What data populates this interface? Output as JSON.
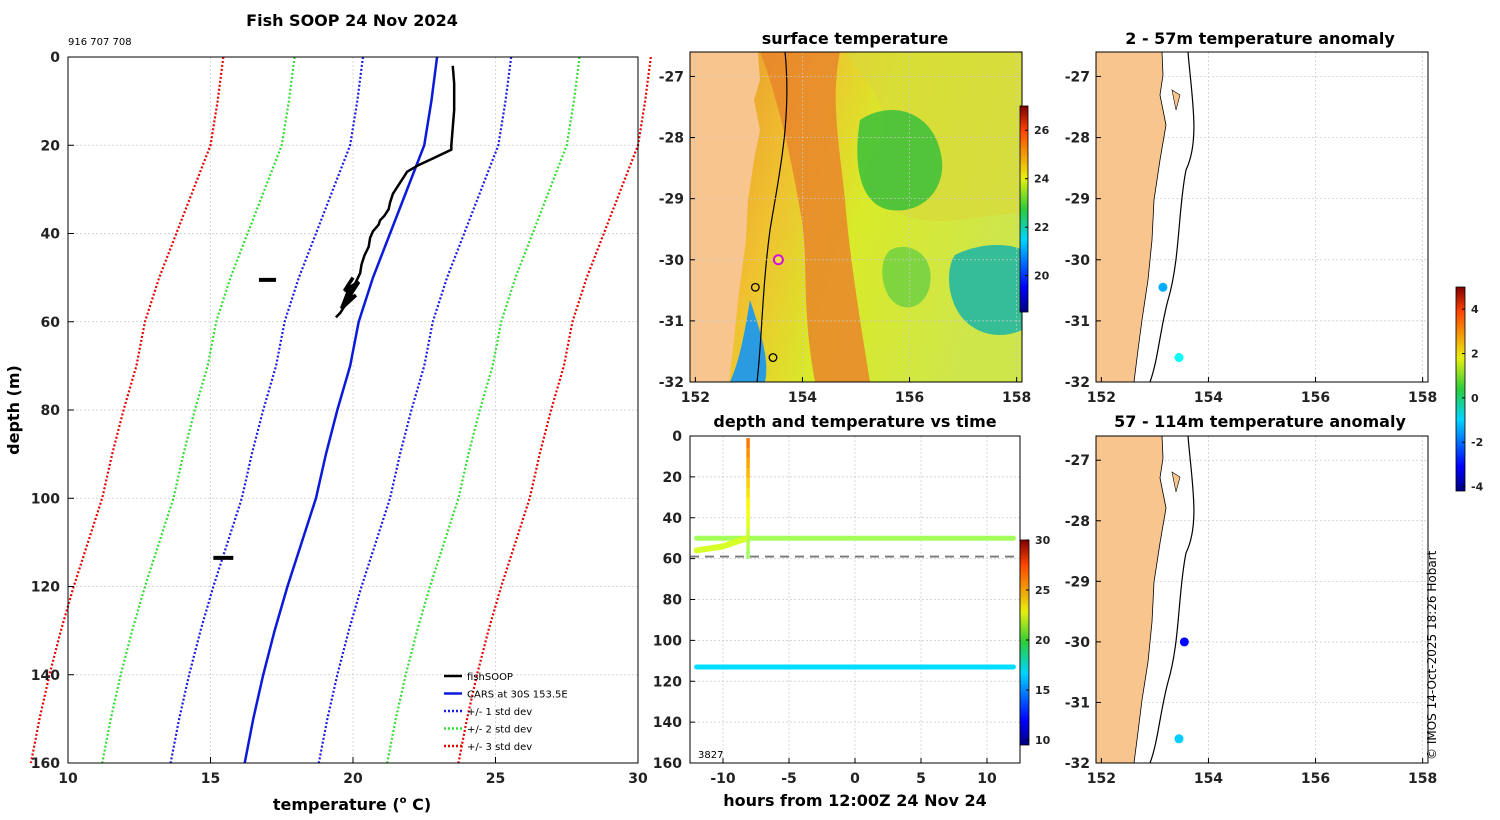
{
  "chart_data": [
    {
      "type": "line",
      "title": "Fish SOOP 24 Nov 2024",
      "id_label": "916 707 708",
      "xlabel": "temperature (",
      "xlabel_sup": "o",
      "xlabel_unit": " C)",
      "ylabel": "depth (m)",
      "xlim": [
        10,
        30
      ],
      "ylim": [
        160,
        0
      ],
      "xticks": [
        10,
        15,
        20,
        25,
        30
      ],
      "yticks": [
        0,
        20,
        40,
        60,
        80,
        100,
        120,
        140,
        160
      ],
      "legend_position": "bottom-right",
      "legend": [
        "fishSOOP",
        "CARS at 30S 153.5E",
        "+/- 1 std dev",
        "+/- 2 std dev",
        "+/- 3 std dev"
      ],
      "cars_profile": {
        "depth": [
          0,
          10,
          20,
          30,
          40,
          50,
          60,
          70,
          80,
          90,
          100,
          110,
          120,
          130,
          140,
          150,
          160
        ],
        "temp": [
          22.95,
          22.75,
          22.5,
          21.9,
          21.3,
          20.7,
          20.2,
          19.9,
          19.45,
          19.05,
          18.7,
          18.2,
          17.7,
          17.25,
          16.85,
          16.5,
          16.2
        ]
      },
      "std_offsets": [
        2.6,
        5.0,
        7.5
      ],
      "fishsoop_profile": {
        "temp": [
          23.5,
          23.55,
          23.55,
          23.5,
          23.45,
          23.45,
          22.8,
          22.3,
          21.9,
          21.8,
          21.6,
          21.4,
          21.3,
          21.25,
          21.1,
          20.95,
          20.9,
          20.7,
          20.6,
          20.55,
          20.4,
          20.3,
          20.25,
          20.1,
          19.95,
          19.85,
          19.75,
          19.65,
          19.55,
          19.4
        ],
        "depth": [
          2,
          6,
          12,
          16,
          20,
          21,
          23,
          24.5,
          26,
          27,
          29,
          31,
          33,
          34.5,
          36,
          37,
          38,
          39.5,
          41,
          43,
          45,
          47,
          49,
          51,
          53,
          54.5,
          56,
          57,
          58,
          59
        ]
      },
      "fishsoop_clusters": [
        {
          "temp": [
            16.7,
            17.3
          ],
          "depth": 50.5
        },
        {
          "temp": [
            15.1,
            15.8
          ],
          "depth": 113.5
        }
      ]
    },
    {
      "type": "heatmap",
      "title": "surface temperature",
      "xlim": [
        151.9,
        158.1
      ],
      "ylim": [
        -32,
        -26.6
      ],
      "xticks": [
        152,
        154,
        156,
        158
      ],
      "yticks": [
        -27,
        -28,
        -29,
        -30,
        -31,
        -32
      ],
      "colorbar_range": [
        18.5,
        27
      ],
      "colorbar_ticks": [
        20,
        22,
        24,
        26
      ],
      "markers": [
        {
          "lon": 153.55,
          "lat": -30.0,
          "style": "magenta"
        },
        {
          "lon": 153.12,
          "lat": -30.45,
          "style": "ring"
        },
        {
          "lon": 153.45,
          "lat": -31.6,
          "style": "ring"
        }
      ]
    },
    {
      "type": "scatter",
      "title": "depth and temperature vs time",
      "xlabel": "hours from 12:00Z 24 Nov 24",
      "xlim": [
        -12.5,
        12.5
      ],
      "ylim": [
        160,
        0
      ],
      "xticks": [
        -10,
        -5,
        0,
        5,
        10
      ],
      "yticks": [
        0,
        20,
        40,
        60,
        80,
        100,
        120,
        140,
        160
      ],
      "colorbar_range": [
        9.5,
        30
      ],
      "colorbar_ticks": [
        10,
        15,
        20,
        25,
        30
      ],
      "dashed_line_depth": 59,
      "corner_label": "3827",
      "series": [
        {
          "name": "upper track",
          "hours": [
            -12,
            -8,
            -4,
            0,
            4,
            8,
            12
          ],
          "depth": 50,
          "temp": 20.5
        },
        {
          "name": "lower track",
          "hours": [
            -12,
            -8,
            -4,
            0,
            4,
            8,
            12
          ],
          "depth": 113,
          "temp": 16.5
        },
        {
          "name": "descent",
          "hours": [
            -12,
            -10,
            -8.2
          ],
          "depth": [
            56,
            54,
            50
          ],
          "temp": 21.5
        },
        {
          "name": "cast",
          "hours": [
            -8.1,
            -8.1
          ],
          "depth": [
            1,
            60
          ],
          "temp_top": 25,
          "temp_bottom": 20
        }
      ]
    },
    {
      "type": "scatter",
      "title": "2 - 57m temperature anomaly",
      "xlim": [
        151.9,
        158.1
      ],
      "ylim": [
        -32,
        -26.6
      ],
      "xticks": [
        152,
        154,
        156,
        158
      ],
      "yticks": [
        -27,
        -28,
        -29,
        -30,
        -31,
        -32
      ],
      "points": [
        {
          "lon": 153.15,
          "lat": -30.45,
          "anomaly": -1.5
        },
        {
          "lon": 153.45,
          "lat": -31.6,
          "anomaly": -0.7
        }
      ]
    },
    {
      "type": "scatter",
      "title": "57 - 114m temperature anomaly",
      "xlim": [
        151.9,
        158.1
      ],
      "ylim": [
        -32,
        -26.6
      ],
      "xticks": [
        152,
        154,
        156,
        158
      ],
      "yticks": [
        -27,
        -28,
        -29,
        -30,
        -31,
        -32
      ],
      "points": [
        {
          "lon": 153.55,
          "lat": -30.0,
          "anomaly": -3.0
        },
        {
          "lon": 153.45,
          "lat": -31.6,
          "anomaly": -1.2
        }
      ],
      "colorbar_range": [
        -4.2,
        5
      ],
      "colorbar_ticks": [
        -4,
        -2,
        0,
        2,
        4
      ]
    }
  ],
  "credit": "© IMOS 14-Oct-2025 18:26 Hobart"
}
